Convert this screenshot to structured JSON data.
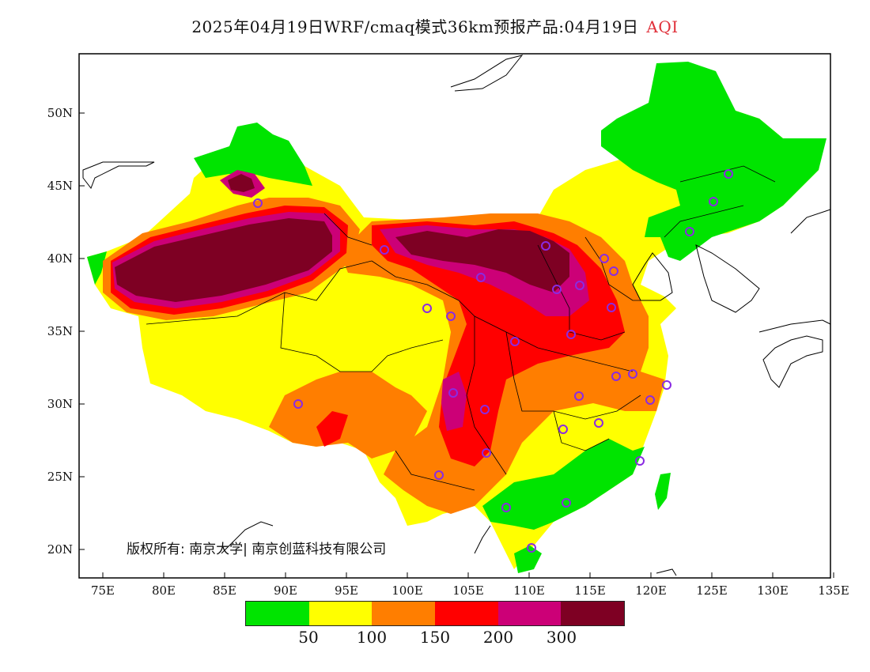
{
  "title": {
    "text": "2025年04月19日WRF/cmaq模式36km预报产品:04月19日",
    "variable": "AQI"
  },
  "axes": {
    "x_ticks": [
      "75E",
      "80E",
      "85E",
      "90E",
      "95E",
      "100E",
      "105E",
      "110E",
      "115E",
      "120E",
      "125E",
      "130E",
      "135E"
    ],
    "y_ticks": [
      "50N",
      "45N",
      "40N",
      "35N",
      "30N",
      "25N",
      "20N"
    ]
  },
  "copyright": "版权所有: 南京大学| 南京创蓝科技有限公司",
  "legend": {
    "colors": [
      "#00e400",
      "#ffff00",
      "#ff7e00",
      "#ff0000",
      "#cc0077",
      "#7e0023"
    ],
    "labels": [
      "50",
      "100",
      "150",
      "200",
      "300"
    ]
  },
  "colors": {
    "good": "#00e400",
    "moderate": "#ffff00",
    "usg": "#ff7e00",
    "unhealthy": "#ff0000",
    "very_unhealthy": "#cc0077",
    "hazardous": "#7e0023",
    "station": "#8a2be2"
  }
}
